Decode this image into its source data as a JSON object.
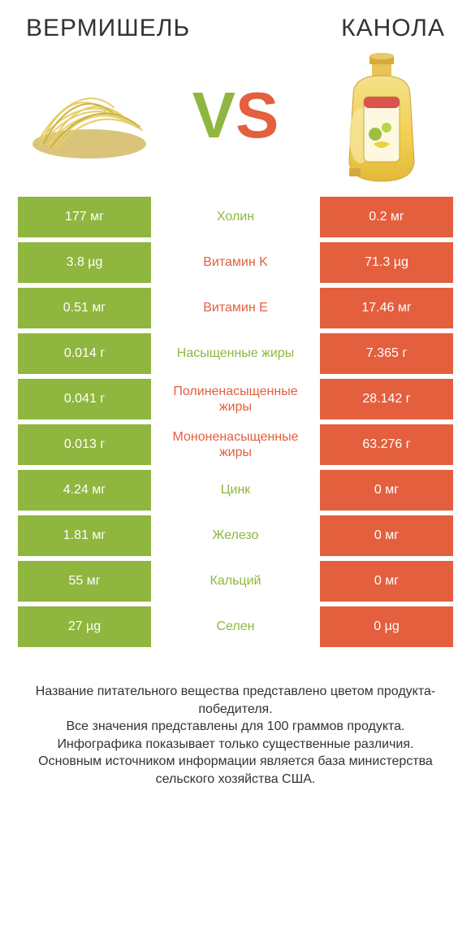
{
  "colors": {
    "left": "#8fb63f",
    "right": "#e35f3e",
    "text": "#333333",
    "background": "#ffffff"
  },
  "header": {
    "left_title": "ВЕРМИШЕЛЬ",
    "right_title": "КАНОЛА",
    "vs_v": "V",
    "vs_s": "S"
  },
  "rows": [
    {
      "left": "177 мг",
      "label": "Холин",
      "right": "0.2 мг",
      "winner": "left"
    },
    {
      "left": "3.8 µg",
      "label": "Витамин K",
      "right": "71.3 µg",
      "winner": "right"
    },
    {
      "left": "0.51 мг",
      "label": "Витамин E",
      "right": "17.46 мг",
      "winner": "right"
    },
    {
      "left": "0.014 г",
      "label": "Насыщенные жиры",
      "right": "7.365 г",
      "winner": "left"
    },
    {
      "left": "0.041 г",
      "label": "Полиненасыщенные жиры",
      "right": "28.142 г",
      "winner": "right"
    },
    {
      "left": "0.013 г",
      "label": "Мононенасыщенные жиры",
      "right": "63.276 г",
      "winner": "right"
    },
    {
      "left": "4.24 мг",
      "label": "Цинк",
      "right": "0 мг",
      "winner": "left"
    },
    {
      "left": "1.81 мг",
      "label": "Железо",
      "right": "0 мг",
      "winner": "left"
    },
    {
      "left": "55 мг",
      "label": "Кальций",
      "right": "0 мг",
      "winner": "left"
    },
    {
      "left": "27 µg",
      "label": "Селен",
      "right": "0 µg",
      "winner": "left"
    }
  ],
  "footnote": "Название питательного вещества представлено цветом продукта-победителя.\nВсе значения представлены для 100 граммов продукта.\nИнфографика показывает только существенные различия.\nОсновным источником информации является база министерства сельского хозяйства США."
}
